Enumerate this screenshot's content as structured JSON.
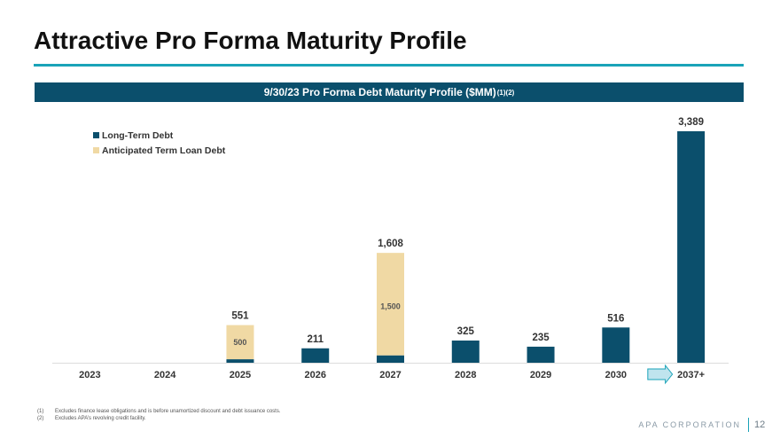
{
  "header": {
    "title": "Attractive Pro Forma Maturity Profile"
  },
  "chart_banner": {
    "text": "9/30/23 Pro Forma Debt Maturity Profile ($MM)",
    "superscript": "(1)(2)"
  },
  "chart_data": {
    "type": "bar",
    "stacked": true,
    "title": "9/30/23 Pro Forma Debt Maturity Profile ($MM)",
    "categories": [
      "2023",
      "2024",
      "2025",
      "2026",
      "2027",
      "2028",
      "2029",
      "2030",
      "2037+"
    ],
    "series": [
      {
        "name": "Long-Term Debt",
        "color": "#0b4f6c",
        "values": [
          0,
          0,
          51,
          211,
          108,
          325,
          235,
          516,
          3389
        ]
      },
      {
        "name": "Anticipated Term Loan Debt",
        "color": "#f0d9a4",
        "values": [
          0,
          0,
          500,
          0,
          1500,
          0,
          0,
          0,
          0
        ]
      }
    ],
    "totals": [
      "",
      "",
      "551",
      "211",
      "1,608",
      "325",
      "235",
      "516",
      "3,389"
    ],
    "segment_labels": [
      "",
      "",
      "500",
      "",
      "1,500",
      "",
      "",
      "",
      ""
    ],
    "legend_position": "top-left",
    "ylim": [
      0,
      3389
    ],
    "grid": false,
    "arrow": {
      "from": "2030",
      "to": "2037+",
      "color": "#bfe4ee",
      "stroke": "#1aa3b8"
    }
  },
  "footnotes": [
    {
      "num": "(1)",
      "text": "Excludes finance lease obligations and is before unamortized discount and debt issuance costs."
    },
    {
      "num": "(2)",
      "text": "Excludes APA’s revolving credit facility."
    }
  ],
  "footer": {
    "brand": "APA CORPORATION",
    "page_number": "12"
  }
}
